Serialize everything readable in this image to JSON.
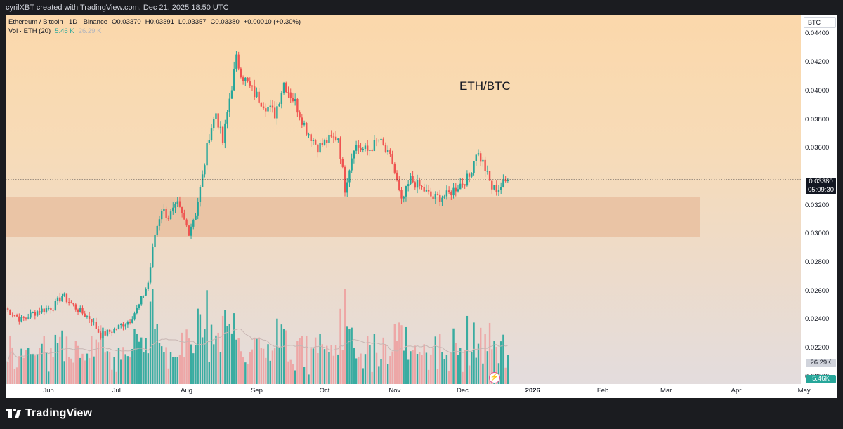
{
  "header": {
    "created_by": "cyrilXBT created with TradingView.com, Dec 21, 2025 18:50 UTC"
  },
  "legend": {
    "symbol": "Ethereum / Bitcoin · 1D · Binance",
    "open": "O0.03370",
    "high": "H0.03391",
    "low": "L0.03357",
    "close": "C0.03380",
    "change": "+0.00010 (+0.30%)",
    "vol_label": "Vol · ETH (20)",
    "vol_value": "5.46 K",
    "vol_ma": "26.29 K"
  },
  "watermark": "ETH/BTC",
  "currency_badge": "BTC",
  "y_axis_ticks": [
    "0.04400",
    "0.04200",
    "0.04000",
    "0.03800",
    "0.03600",
    "0.03200",
    "0.03000",
    "0.02800",
    "0.02600",
    "0.02400",
    "0.02200",
    "0.02000"
  ],
  "x_axis_ticks": [
    {
      "label": "Jun",
      "bold": false
    },
    {
      "label": "Jul",
      "bold": false
    },
    {
      "label": "Aug",
      "bold": false
    },
    {
      "label": "Sep",
      "bold": false
    },
    {
      "label": "Oct",
      "bold": false
    },
    {
      "label": "Nov",
      "bold": false
    },
    {
      "label": "Dec",
      "bold": false
    },
    {
      "label": "2026",
      "bold": true
    },
    {
      "label": "Feb",
      "bold": false
    },
    {
      "label": "Mar",
      "bold": false
    },
    {
      "label": "Apr",
      "bold": false
    },
    {
      "label": "May",
      "bold": false
    }
  ],
  "price_label": {
    "price": "0.03380",
    "countdown": "05:09:30"
  },
  "volume_labels": {
    "ma": "26.29K",
    "current": "5.46K"
  },
  "footer": {
    "brand": "TradingView"
  },
  "colors": {
    "up": "#26a69a",
    "down": "#ef5350",
    "vol_up": "#26a69a",
    "vol_down": "#ef9a9a",
    "zone": "#e9bfa0"
  },
  "chart_data": {
    "type": "candlestick",
    "symbol": "ETH/BTC",
    "timeframe": "1D",
    "exchange": "Binance",
    "y_range": [
      0.0195,
      0.0453
    ],
    "price_anchors": [
      {
        "date": "2025-05-13",
        "price": 0.0248
      },
      {
        "date": "2025-05-20",
        "price": 0.024
      },
      {
        "date": "2025-05-27",
        "price": 0.0246
      },
      {
        "date": "2025-06-03",
        "price": 0.0249
      },
      {
        "date": "2025-06-07",
        "price": 0.0257
      },
      {
        "date": "2025-06-14",
        "price": 0.0247
      },
      {
        "date": "2025-06-20",
        "price": 0.024
      },
      {
        "date": "2025-06-24",
        "price": 0.0229
      },
      {
        "date": "2025-06-30",
        "price": 0.0233
      },
      {
        "date": "2025-07-07",
        "price": 0.024
      },
      {
        "date": "2025-07-11",
        "price": 0.025
      },
      {
        "date": "2025-07-15",
        "price": 0.0266
      },
      {
        "date": "2025-07-18",
        "price": 0.03
      },
      {
        "date": "2025-07-21",
        "price": 0.0318
      },
      {
        "date": "2025-07-24",
        "price": 0.0312
      },
      {
        "date": "2025-07-28",
        "price": 0.032
      },
      {
        "date": "2025-08-02",
        "price": 0.0302
      },
      {
        "date": "2025-08-05",
        "price": 0.0315
      },
      {
        "date": "2025-08-08",
        "price": 0.034
      },
      {
        "date": "2025-08-11",
        "price": 0.037
      },
      {
        "date": "2025-08-14",
        "price": 0.0385
      },
      {
        "date": "2025-08-17",
        "price": 0.0364
      },
      {
        "date": "2025-08-20",
        "price": 0.0395
      },
      {
        "date": "2025-08-23",
        "price": 0.0422
      },
      {
        "date": "2025-08-26",
        "price": 0.041
      },
      {
        "date": "2025-08-30",
        "price": 0.04
      },
      {
        "date": "2025-09-05",
        "price": 0.039
      },
      {
        "date": "2025-09-09",
        "price": 0.0384
      },
      {
        "date": "2025-09-13",
        "price": 0.0406
      },
      {
        "date": "2025-09-18",
        "price": 0.0392
      },
      {
        "date": "2025-09-23",
        "price": 0.0373
      },
      {
        "date": "2025-09-28",
        "price": 0.0361
      },
      {
        "date": "2025-10-03",
        "price": 0.0366
      },
      {
        "date": "2025-10-07",
        "price": 0.0368
      },
      {
        "date": "2025-10-10",
        "price": 0.0332
      },
      {
        "date": "2025-10-14",
        "price": 0.0362
      },
      {
        "date": "2025-10-20",
        "price": 0.0358
      },
      {
        "date": "2025-10-25",
        "price": 0.0366
      },
      {
        "date": "2025-10-31",
        "price": 0.035
      },
      {
        "date": "2025-11-04",
        "price": 0.0322
      },
      {
        "date": "2025-11-08",
        "price": 0.0338
      },
      {
        "date": "2025-11-13",
        "price": 0.0332
      },
      {
        "date": "2025-11-18",
        "price": 0.0325
      },
      {
        "date": "2025-11-24",
        "price": 0.0327
      },
      {
        "date": "2025-11-30",
        "price": 0.0335
      },
      {
        "date": "2025-12-04",
        "price": 0.034
      },
      {
        "date": "2025-12-07",
        "price": 0.0358
      },
      {
        "date": "2025-12-10",
        "price": 0.035
      },
      {
        "date": "2025-12-14",
        "price": 0.0332
      },
      {
        "date": "2025-12-17",
        "price": 0.0332
      },
      {
        "date": "2025-12-21",
        "price": 0.0338
      }
    ],
    "last_candle": {
      "date": "2025-12-21",
      "open": 0.0337,
      "high": 0.03391,
      "low": 0.03357,
      "close": 0.0338
    },
    "current_price": 0.0338,
    "support_zone": {
      "low": 0.0298,
      "high": 0.0326,
      "from": "2025-05-13",
      "to": "2026-03-16"
    },
    "volume": {
      "label": "Vol · ETH (20)",
      "ma_value_k": 26.29,
      "last_value_k": 5.46
    },
    "grid": false
  }
}
